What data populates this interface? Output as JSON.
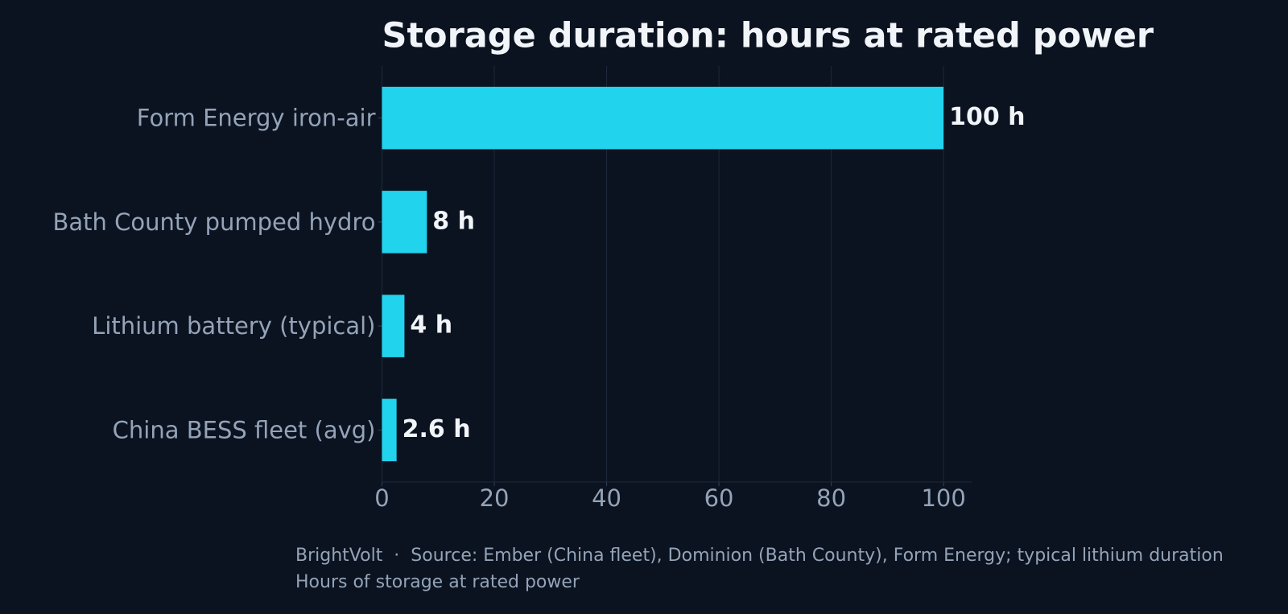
{
  "chart_data": {
    "type": "barh",
    "title": "Storage duration: hours at rated power",
    "categories": [
      "Form Energy iron-air",
      "Bath County pumped hydro",
      "Lithium battery (typical)",
      "China BESS fleet (avg)"
    ],
    "values": [
      100,
      8,
      4,
      2.6
    ],
    "value_labels": [
      "100 h",
      "8 h",
      "4 h",
      "2.6 h"
    ],
    "color": "#22d3ee",
    "xlim": [
      0,
      105
    ],
    "xticks": [
      0,
      20,
      40,
      60,
      80,
      100
    ],
    "grid": true,
    "source": "BrightVolt  ·  Source: Ember (China fleet), Dominion (Bath County), Form Energy; typical lithium duration",
    "note": "Hours of storage at rated power"
  }
}
